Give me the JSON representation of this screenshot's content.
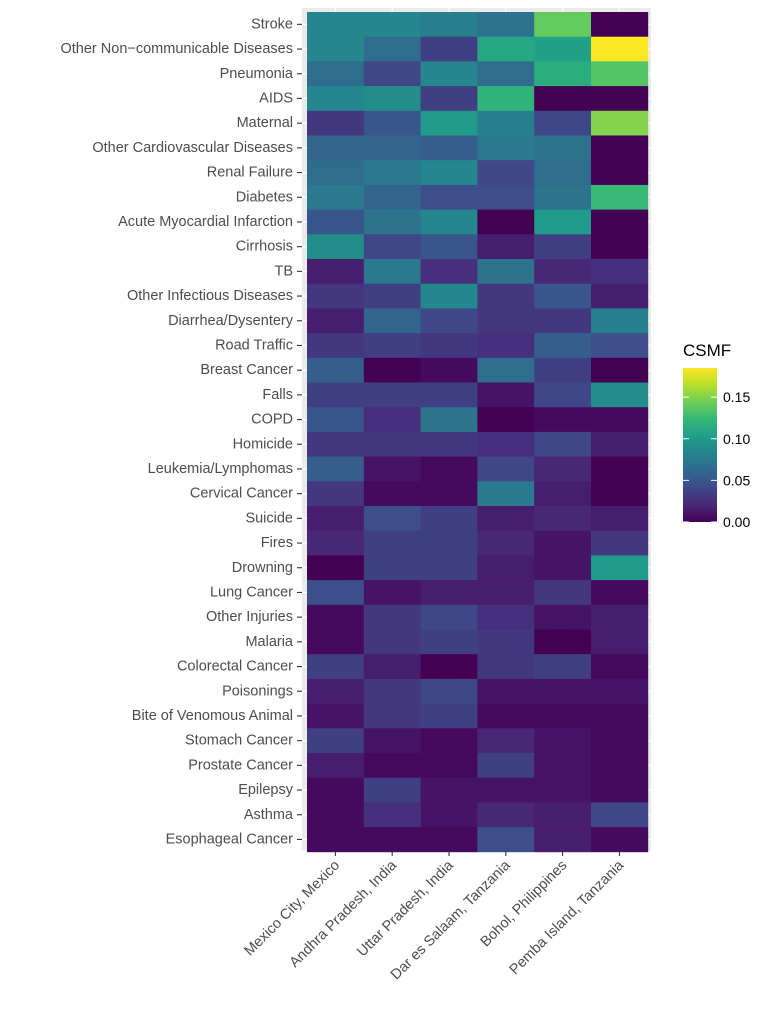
{
  "chart_data": {
    "type": "heatmap",
    "title": "",
    "xlabel": "",
    "ylabel": "",
    "x_categories": [
      "Mexico City, Mexico",
      "Andhra Pradesh, India",
      "Uttar Pradesh, India",
      "Dar es Salaam, Tanzania",
      "Bohol, Philippines",
      "Pemba Island, Tanzania"
    ],
    "y_categories": [
      "Stroke",
      "Other Non−communicable Diseases",
      "Pneumonia",
      "AIDS",
      "Maternal",
      "Other Cardiovascular Diseases",
      "Renal Failure",
      "Diabetes",
      "Acute Myocardial Infarction",
      "Cirrhosis",
      "TB",
      "Other Infectious Diseases",
      "Diarrhea/Dysentery",
      "Road Traffic",
      "Breast Cancer",
      "Falls",
      "COPD",
      "Homicide",
      "Leukemia/Lymphomas",
      "Cervical Cancer",
      "Suicide",
      "Fires",
      "Drowning",
      "Lung Cancer",
      "Other Injuries",
      "Malaria",
      "Colorectal Cancer",
      "Poisonings",
      "Bite of Venomous Animal",
      "Stomach Cancer",
      "Prostate Cancer",
      "Epilepsy",
      "Asthma",
      "Esophageal Cancer"
    ],
    "values": [
      [
        0.085,
        0.085,
        0.08,
        0.07,
        0.14,
        0.0
      ],
      [
        0.085,
        0.065,
        0.035,
        0.11,
        0.105,
        0.185
      ],
      [
        0.065,
        0.04,
        0.085,
        0.065,
        0.115,
        0.135
      ],
      [
        0.085,
        0.09,
        0.035,
        0.12,
        0.0,
        0.0
      ],
      [
        0.03,
        0.05,
        0.1,
        0.08,
        0.04,
        0.15
      ],
      [
        0.06,
        0.06,
        0.055,
        0.075,
        0.07,
        0.0
      ],
      [
        0.065,
        0.075,
        0.085,
        0.04,
        0.065,
        0.0
      ],
      [
        0.075,
        0.06,
        0.045,
        0.045,
        0.07,
        0.125
      ],
      [
        0.05,
        0.07,
        0.085,
        0.0,
        0.1,
        0.0
      ],
      [
        0.09,
        0.04,
        0.05,
        0.015,
        0.035,
        0.0
      ],
      [
        0.015,
        0.075,
        0.025,
        0.07,
        0.02,
        0.025
      ],
      [
        0.03,
        0.035,
        0.085,
        0.03,
        0.05,
        0.015
      ],
      [
        0.015,
        0.06,
        0.04,
        0.03,
        0.03,
        0.08
      ],
      [
        0.03,
        0.035,
        0.03,
        0.025,
        0.055,
        0.045
      ],
      [
        0.055,
        0.0,
        0.005,
        0.065,
        0.035,
        0.0
      ],
      [
        0.035,
        0.035,
        0.035,
        0.01,
        0.04,
        0.09
      ],
      [
        0.05,
        0.025,
        0.07,
        0.0,
        0.005,
        0.005
      ],
      [
        0.03,
        0.03,
        0.03,
        0.025,
        0.04,
        0.015
      ],
      [
        0.055,
        0.01,
        0.005,
        0.04,
        0.02,
        0.0
      ],
      [
        0.03,
        0.005,
        0.005,
        0.075,
        0.015,
        0.0
      ],
      [
        0.015,
        0.045,
        0.035,
        0.015,
        0.02,
        0.015
      ],
      [
        0.02,
        0.035,
        0.035,
        0.02,
        0.01,
        0.03
      ],
      [
        0.0,
        0.035,
        0.035,
        0.015,
        0.01,
        0.1
      ],
      [
        0.045,
        0.01,
        0.015,
        0.015,
        0.03,
        0.005
      ],
      [
        0.005,
        0.03,
        0.04,
        0.025,
        0.01,
        0.015
      ],
      [
        0.005,
        0.03,
        0.035,
        0.03,
        0.0,
        0.015
      ],
      [
        0.035,
        0.015,
        0.0,
        0.03,
        0.035,
        0.005
      ],
      [
        0.015,
        0.03,
        0.04,
        0.01,
        0.01,
        0.01
      ],
      [
        0.01,
        0.03,
        0.035,
        0.005,
        0.005,
        0.005
      ],
      [
        0.035,
        0.01,
        0.005,
        0.02,
        0.01,
        0.005
      ],
      [
        0.015,
        0.005,
        0.005,
        0.035,
        0.01,
        0.005
      ],
      [
        0.005,
        0.035,
        0.01,
        0.01,
        0.01,
        0.005
      ],
      [
        0.005,
        0.025,
        0.01,
        0.02,
        0.015,
        0.04
      ],
      [
        0.005,
        0.005,
        0.005,
        0.045,
        0.015,
        0.005
      ]
    ],
    "value_range": [
      0,
      0.185
    ],
    "colorscale": "viridis",
    "legend": {
      "title": "CSMF",
      "position": "right",
      "breaks": [
        0.0,
        0.05,
        0.1,
        0.15
      ],
      "break_labels": [
        "0.00",
        "0.05",
        "0.10",
        "0.15"
      ]
    },
    "grid": true,
    "panel_background": "#ebebeb"
  }
}
